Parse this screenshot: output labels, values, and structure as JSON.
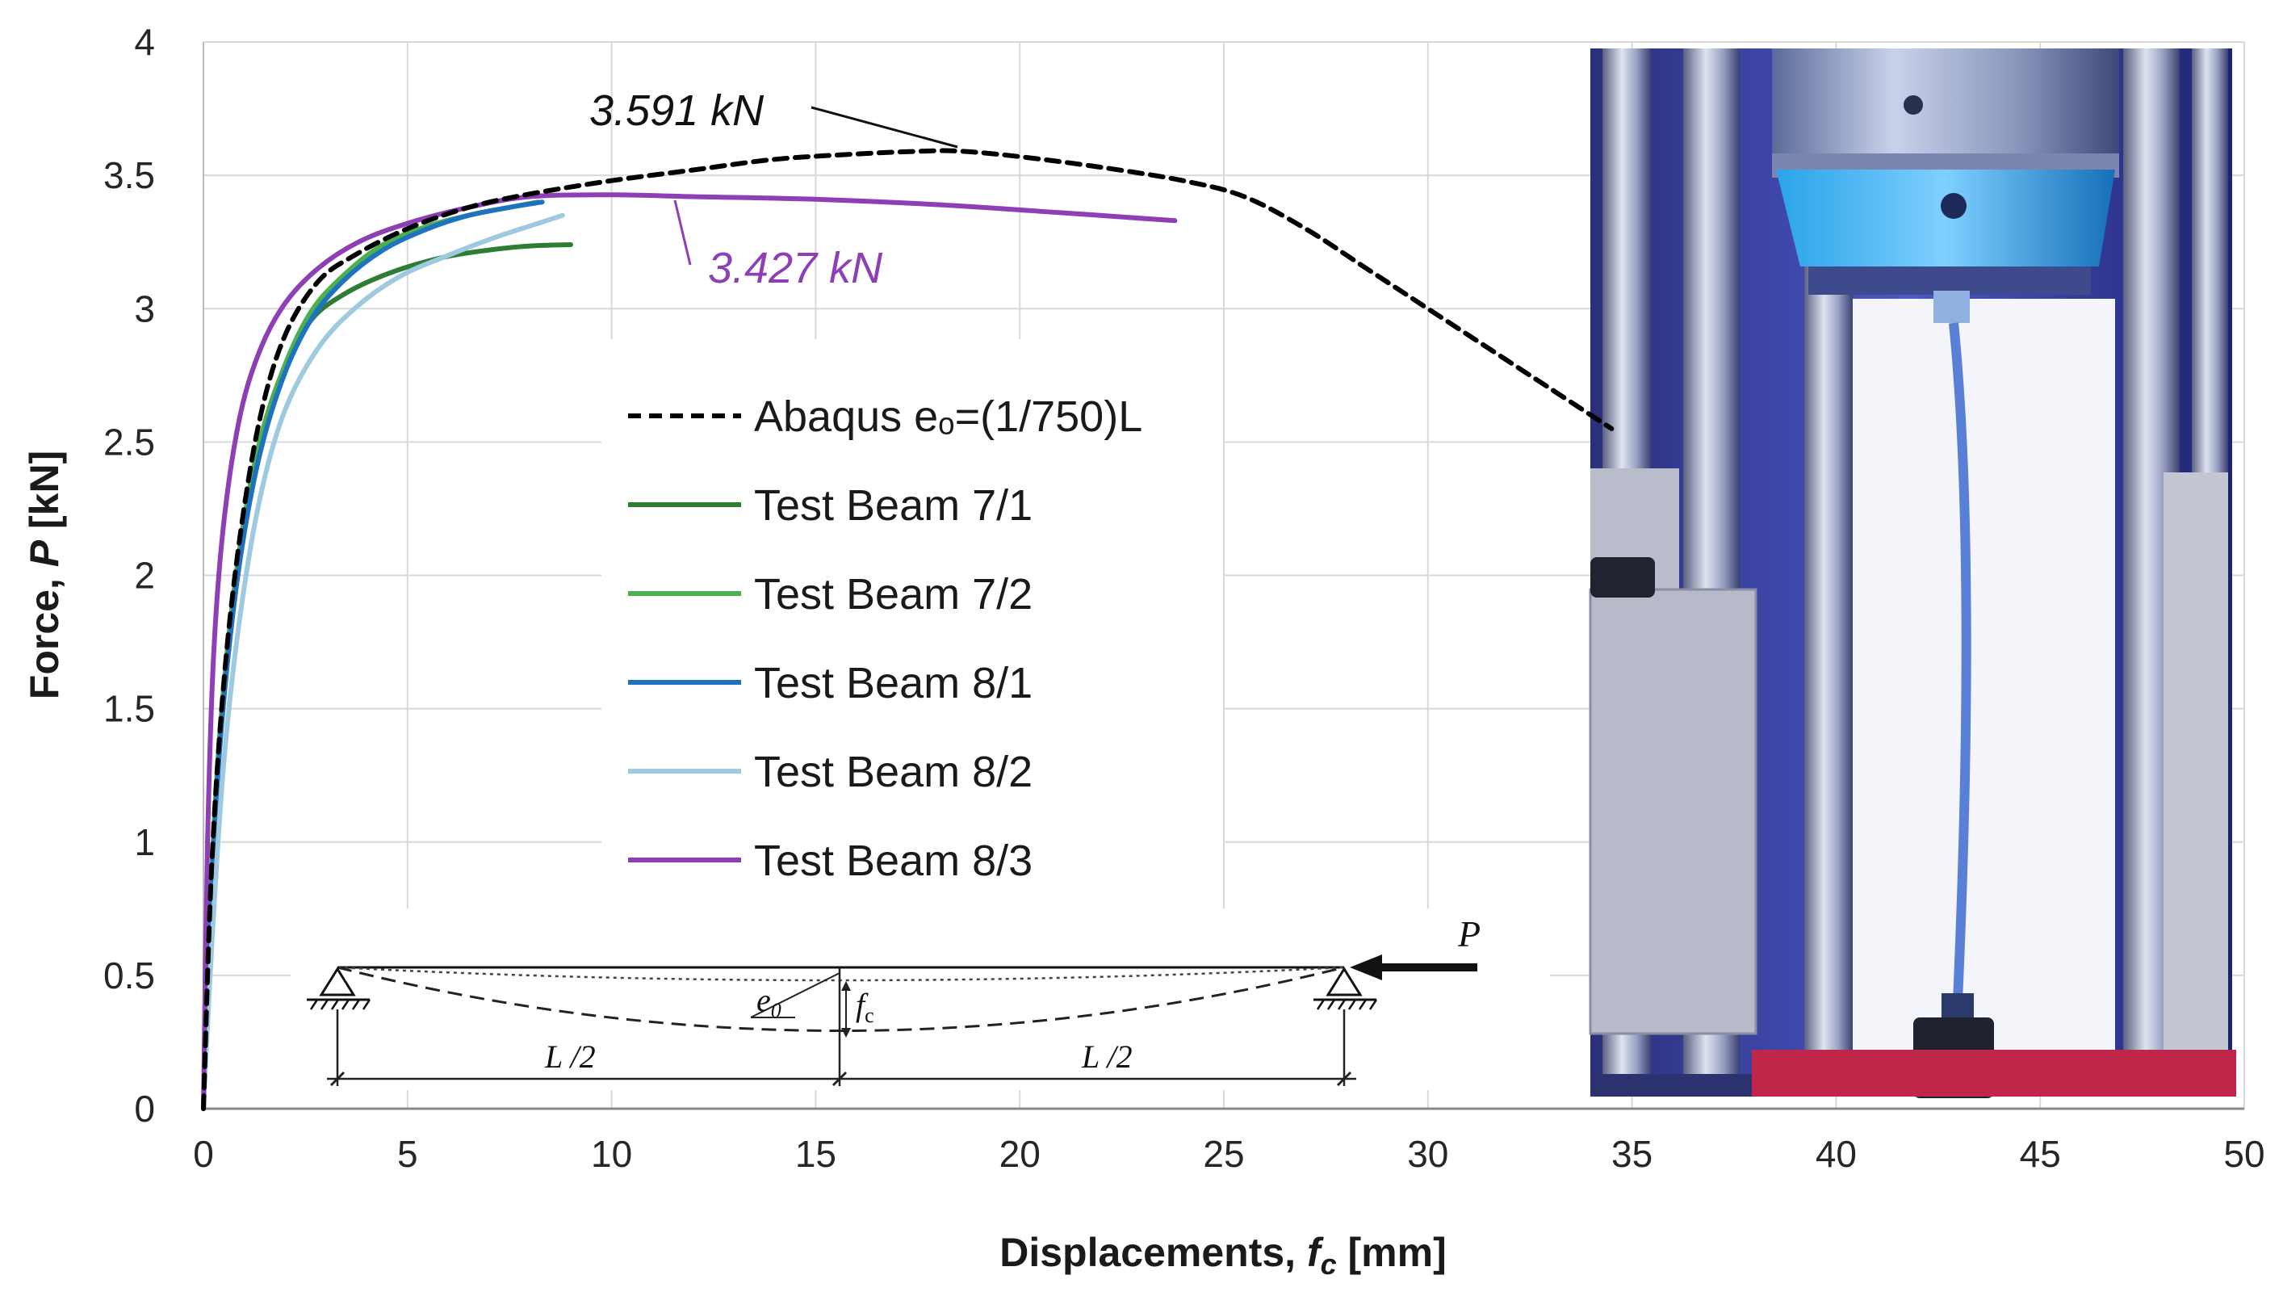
{
  "chart_data": {
    "type": "line",
    "title": "",
    "xlabel": "Displacements, ",
    "xlabel_symbol": "f",
    "xlabel_subscript": "c",
    "xlabel_unit": " [mm]",
    "ylabel": "Force, ",
    "ylabel_symbol": "P",
    "ylabel_unit": " [kN]",
    "xlim": [
      0,
      50
    ],
    "ylim": [
      0,
      4
    ],
    "xticks": [
      "0",
      "5",
      "10",
      "15",
      "20",
      "25",
      "30",
      "35",
      "40",
      "45",
      "50"
    ],
    "yticks": [
      "0",
      "0.5",
      "1",
      "1.5",
      "2",
      "2.5",
      "3",
      "3.5",
      "4"
    ],
    "grid": true,
    "legend_position": "center-left",
    "series": [
      {
        "name": "Abaqus eₒ=(1/750)L",
        "color": "#000000",
        "dash": true,
        "x": [
          0,
          0.2,
          0.5,
          0.9,
          1.4,
          2.0,
          2.8,
          3.7,
          5.0,
          6.5,
          8.0,
          10,
          12,
          14,
          16,
          17.5,
          18.5,
          20,
          22,
          24,
          25.5,
          27,
          28.5,
          30,
          31.5,
          33,
          34.5
        ],
        "y": [
          0,
          0.9,
          1.6,
          2.15,
          2.6,
          2.9,
          3.1,
          3.2,
          3.3,
          3.38,
          3.43,
          3.48,
          3.52,
          3.56,
          3.58,
          3.59,
          3.591,
          3.57,
          3.53,
          3.48,
          3.42,
          3.3,
          3.15,
          3.0,
          2.85,
          2.7,
          2.55
        ]
      },
      {
        "name": "Test Beam 7/1",
        "color": "#2e7d32",
        "dash": false,
        "x": [
          0,
          0.15,
          0.4,
          0.8,
          1.3,
          1.9,
          2.6,
          3.4,
          4.5,
          5.8,
          7.0,
          8.0,
          9.0
        ],
        "y": [
          0,
          0.7,
          1.4,
          2.0,
          2.45,
          2.75,
          2.95,
          3.05,
          3.13,
          3.19,
          3.22,
          3.235,
          3.24
        ]
      },
      {
        "name": "Test Beam 7/2",
        "color": "#4caf50",
        "dash": false,
        "x": [
          0,
          0.15,
          0.4,
          0.8,
          1.3,
          1.9,
          2.6,
          3.4,
          4.4,
          5.5,
          6.5,
          7.5,
          8.2
        ],
        "y": [
          0,
          0.7,
          1.4,
          2.0,
          2.45,
          2.75,
          2.98,
          3.12,
          3.24,
          3.31,
          3.35,
          3.38,
          3.4
        ]
      },
      {
        "name": "Test Beam 8/1",
        "color": "#1e73be",
        "dash": false,
        "x": [
          0,
          0.15,
          0.4,
          0.8,
          1.3,
          1.9,
          2.6,
          3.4,
          4.4,
          5.5,
          6.5,
          7.5,
          8.3
        ],
        "y": [
          0,
          0.65,
          1.35,
          1.95,
          2.4,
          2.72,
          2.95,
          3.1,
          3.22,
          3.3,
          3.35,
          3.38,
          3.4
        ]
      },
      {
        "name": "Test Beam 8/2",
        "color": "#9ecae1",
        "dash": false,
        "x": [
          0,
          0.2,
          0.5,
          0.9,
          1.4,
          2.0,
          2.8,
          3.7,
          4.8,
          6.0,
          7.2,
          8.2,
          8.8
        ],
        "y": [
          0,
          0.6,
          1.3,
          1.85,
          2.3,
          2.62,
          2.85,
          3.0,
          3.12,
          3.2,
          3.27,
          3.32,
          3.35
        ]
      },
      {
        "name": "Test Beam 8/3",
        "color": "#8e3fb5",
        "dash": false,
        "x": [
          0,
          0.1,
          0.25,
          0.5,
          0.9,
          1.4,
          2.0,
          2.8,
          3.8,
          5.0,
          6.5,
          8.0,
          10,
          12,
          15,
          18,
          21,
          23.8
        ],
        "y": [
          0,
          1.0,
          1.7,
          2.2,
          2.6,
          2.85,
          3.02,
          3.15,
          3.25,
          3.32,
          3.38,
          3.42,
          3.427,
          3.42,
          3.41,
          3.39,
          3.36,
          3.33
        ]
      }
    ],
    "annotations": [
      {
        "text": "3.591 kN",
        "color": "#111111",
        "point": [
          18.5,
          3.591
        ]
      },
      {
        "text": "3.427 kN",
        "color": "#8e3fb5",
        "point": [
          11,
          3.427
        ]
      }
    ],
    "inset_diagram": {
      "load_label": "P",
      "eccentricity_label": "e",
      "eccentricity_subscript": "0",
      "deflection_label": "f",
      "deflection_subscript": "c",
      "span_left_label": "L /2",
      "span_right_label": "L /2"
    },
    "photo_inset": "test-rig-photo"
  }
}
